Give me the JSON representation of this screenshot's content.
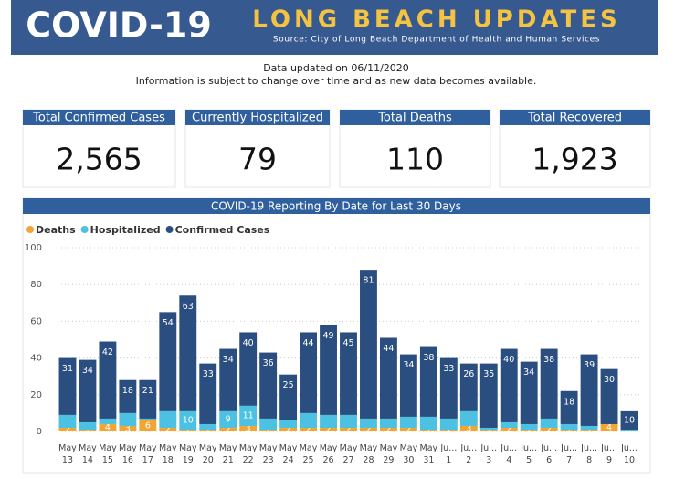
{
  "header": {
    "title": "COVID-19",
    "banner": "LONG BEACH UPDATES",
    "source": "Source: City of Long Beach Department of Health and Human Services"
  },
  "notice": {
    "updated": "Data updated on 06/11/2020",
    "disclaimer": "Information is subject to change over time and as new data becomes available."
  },
  "stats": [
    {
      "label": "Total Confirmed Cases",
      "value": "2,565"
    },
    {
      "label": "Currently Hospitalized",
      "value": "79"
    },
    {
      "label": "Total Deaths",
      "value": "110"
    },
    {
      "label": "Total Recovered",
      "value": "1,923"
    }
  ],
  "chart_data": {
    "type": "stacked_bar",
    "title": "COVID-19 Reporting By Date for Last 30 Days",
    "categories": [
      "May 13",
      "May 14",
      "May 15",
      "May 16",
      "May 17",
      "May 18",
      "May 19",
      "May 20",
      "May 21",
      "May 22",
      "May 23",
      "May 24",
      "May 25",
      "May 26",
      "May 27",
      "May 28",
      "May 29",
      "May 30",
      "May 31",
      "Ju... 1",
      "Ju... 2",
      "Ju... 3",
      "Ju... 4",
      "Ju... 5",
      "Ju... 6",
      "Ju... 7",
      "Ju... 8",
      "Ju... 9",
      "Ju... 10"
    ],
    "series": [
      {
        "name": "Deaths",
        "color": "#f2a531",
        "values": [
          2,
          1,
          4,
          3,
          6,
          2,
          1,
          1,
          2,
          3,
          1,
          2,
          2,
          2,
          2,
          2,
          2,
          2,
          1,
          1,
          3,
          1,
          2,
          1,
          2,
          1,
          1,
          4,
          0
        ]
      },
      {
        "name": "Hospitalized",
        "color": "#4cc1e2",
        "values": [
          7,
          4,
          3,
          7,
          1,
          9,
          10,
          3,
          9,
          11,
          6,
          4,
          8,
          7,
          7,
          5,
          5,
          6,
          7,
          6,
          8,
          1,
          3,
          3,
          5,
          3,
          2,
          0,
          1
        ],
        "value_labels": [
          null,
          null,
          null,
          null,
          null,
          null,
          "10",
          null,
          "9",
          "11",
          null,
          null,
          null,
          null,
          null,
          null,
          null,
          null,
          null,
          null,
          null,
          null,
          null,
          null,
          null,
          null,
          null,
          null,
          null
        ]
      },
      {
        "name": "Confirmed Cases",
        "color": "#2b4e80",
        "values": [
          31,
          34,
          42,
          18,
          21,
          54,
          63,
          33,
          34,
          40,
          36,
          25,
          44,
          49,
          45,
          81,
          44,
          34,
          38,
          33,
          26,
          35,
          40,
          34,
          38,
          18,
          39,
          30,
          10
        ]
      }
    ],
    "ylim": [
      0,
      100
    ],
    "yticks": [
      0,
      20,
      40,
      60,
      80,
      100
    ],
    "grid": true,
    "legend": "top-left"
  }
}
